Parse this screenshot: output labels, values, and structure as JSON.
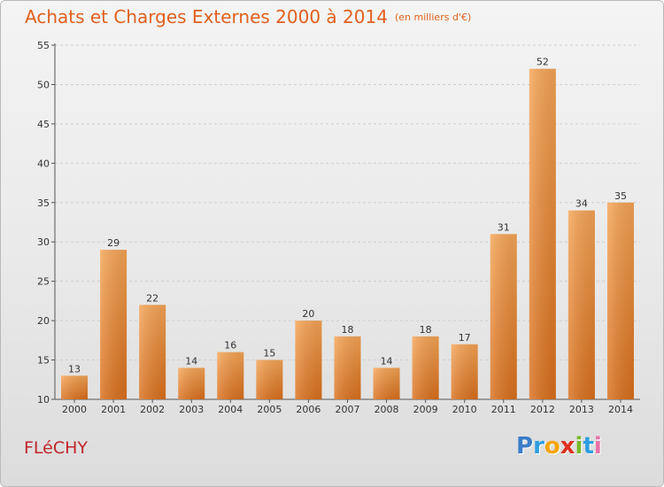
{
  "chart_data": {
    "type": "bar",
    "title": "Achats et Charges Externes 2000 à 2014",
    "subtitle": "(en milliers d'€)",
    "categories": [
      "2000",
      "2001",
      "2002",
      "2003",
      "2004",
      "2005",
      "2006",
      "2007",
      "2008",
      "2009",
      "2010",
      "2011",
      "2012",
      "2013",
      "2014"
    ],
    "values": [
      13,
      29,
      22,
      14,
      16,
      15,
      20,
      18,
      14,
      18,
      17,
      31,
      52,
      34,
      35
    ],
    "ylim": [
      10,
      55
    ],
    "yticks": [
      10,
      15,
      20,
      25,
      30,
      35,
      40,
      45,
      50,
      55
    ],
    "xlabel": "",
    "ylabel": "",
    "grid": true,
    "bar_color": "#e8832e"
  },
  "footer": {
    "commune": "FLéCHY",
    "logo": {
      "p": "P",
      "r": "r",
      "o": "o",
      "x": "x",
      "i1": "i",
      "t": "t",
      "i2": "i"
    }
  }
}
